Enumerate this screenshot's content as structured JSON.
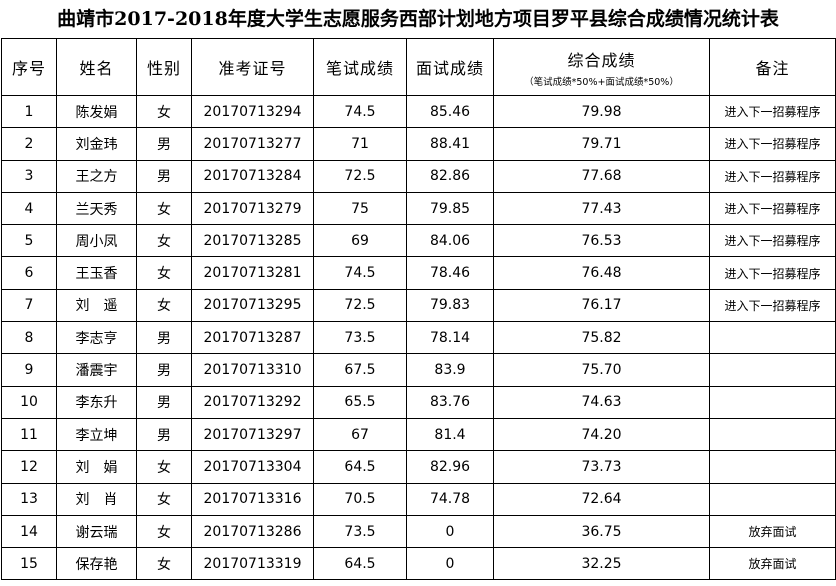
{
  "header": {
    "title": "曲靖市2017-2018年度大学生志愿服务西部计划地方项目罗平县综合成绩情况统计表"
  },
  "table": {
    "columns": [
      "序号",
      "姓名",
      "性别",
      "准考证号",
      "笔试成绩",
      "面试成绩",
      "综合成绩",
      "备注"
    ],
    "score_formula": "（笔试成绩*50%+面试成绩*50%）",
    "rows": [
      [
        "1",
        "陈发娟",
        "女",
        "20170713294",
        "74.5",
        "85.46",
        "79.98",
        "进入下一招募程序"
      ],
      [
        "2",
        "刘金玮",
        "男",
        "20170713277",
        "71",
        "88.41",
        "79.71",
        "进入下一招募程序"
      ],
      [
        "3",
        "王之方",
        "男",
        "20170713284",
        "72.5",
        "82.86",
        "77.68",
        "进入下一招募程序"
      ],
      [
        "4",
        "兰天秀",
        "女",
        "20170713279",
        "75",
        "79.85",
        "77.43",
        "进入下一招募程序"
      ],
      [
        "5",
        "周小凤",
        "女",
        "20170713285",
        "69",
        "84.06",
        "76.53",
        "进入下一招募程序"
      ],
      [
        "6",
        "王玉香",
        "女",
        "20170713281",
        "74.5",
        "78.46",
        "76.48",
        "进入下一招募程序"
      ],
      [
        "7",
        "刘　遥",
        "女",
        "20170713295",
        "72.5",
        "79.83",
        "76.17",
        "进入下一招募程序"
      ],
      [
        "8",
        "李志亨",
        "男",
        "20170713287",
        "73.5",
        "78.14",
        "75.82"
      ],
      [
        "9",
        "潘震宇",
        "男",
        "20170713310",
        "67.5",
        "83.9",
        "75.70"
      ],
      [
        "10",
        "李东升",
        "男",
        "20170713292",
        "65.5",
        "83.76",
        "74.63"
      ],
      [
        "11",
        "李立坤",
        "男",
        "20170713297",
        "67",
        "81.4",
        "74.20"
      ],
      [
        "12",
        "刘　娟",
        "女",
        "20170713304",
        "64.5",
        "82.96",
        "73.73"
      ],
      [
        "13",
        "刘　肖",
        "女",
        "20170713316",
        "70.5",
        "74.78",
        "72.64"
      ],
      [
        "14",
        "谢云瑞",
        "女",
        "20170713286",
        "73.5",
        "0",
        "36.75",
        "放弃面试"
      ],
      [
        "15",
        "保存艳",
        "女",
        "20170713319",
        "64.5",
        "0",
        "32.25",
        "放弃面试"
      ]
    ]
  }
}
